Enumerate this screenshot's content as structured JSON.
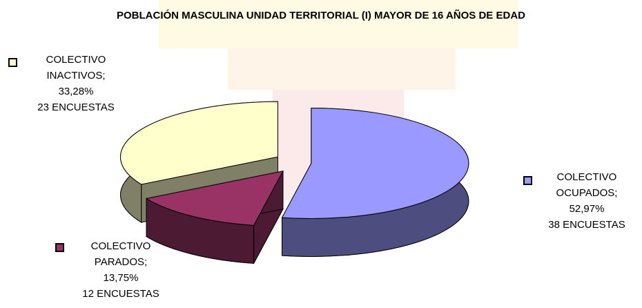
{
  "chart_data": {
    "type": "pie3d",
    "title": "POBLACIÓN MASCULINA UNIDAD TERRITORIAL (I) MAYOR DE 16 AÑOS DE EDAD",
    "categories": [
      "COLECTIVO OCUPADOS;",
      "COLECTIVO PARADOS;",
      "COLECTIVO INACTIVOS;"
    ],
    "values": [
      52.97,
      13.75,
      33.28
    ],
    "value_labels": [
      "52,97%",
      "13,75%",
      "33,28%"
    ],
    "annotations": [
      "38 ENCUESTAS",
      "12 ENCUESTAS",
      "23 ENCUESTAS"
    ],
    "colors": [
      "#9999ff",
      "#993366",
      "#ffffcc"
    ],
    "side_colors": [
      "#4d4d80",
      "#4d1a33",
      "#808066"
    ]
  }
}
